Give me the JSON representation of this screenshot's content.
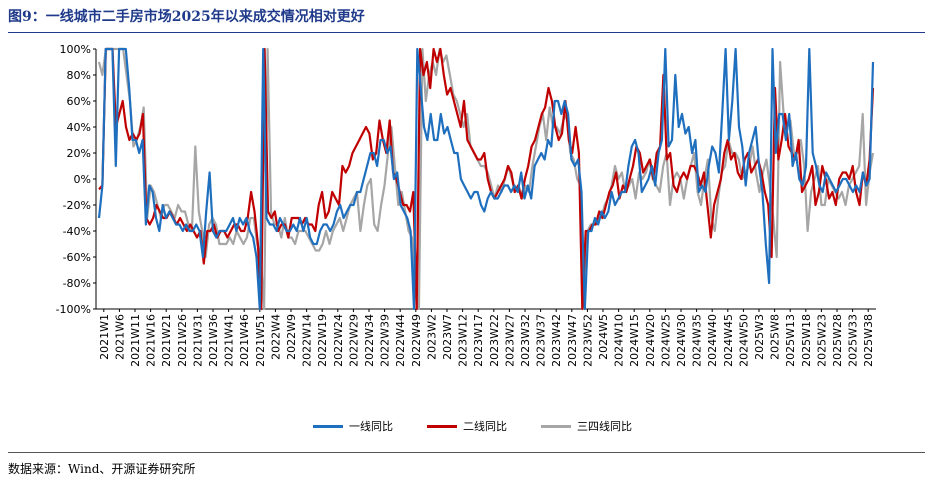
{
  "title": "图9：一线城市二手房市场2025年以来成交情况相对更好",
  "source": "数据来源：Wind、开源证券研究所",
  "colors": {
    "tier1": "#1f6fbf",
    "tier2": "#c00000",
    "tier34": "#a6a6a6"
  },
  "chart_data": {
    "type": "line",
    "ylim": [
      -100,
      100
    ],
    "y_ticks": [
      "100%",
      "80%",
      "60%",
      "40%",
      "20%",
      "0%",
      "-20%",
      "-40%",
      "-60%",
      "-80%",
      "-100%"
    ],
    "x_tick_labels": [
      "2021W1",
      "2021W6",
      "2021W11",
      "2021W16",
      "2021W21",
      "2021W26",
      "2021W31",
      "2021W36",
      "2021W41",
      "2021W46",
      "2021W51",
      "2022W4",
      "2022W9",
      "2022W14",
      "2022W19",
      "2022W24",
      "2022W29",
      "2022W34",
      "2022W39",
      "2022W44",
      "2022W49",
      "2023W2",
      "2023W7",
      "2023W12",
      "2023W17",
      "2023W22",
      "2023W27",
      "2023W32",
      "2023W37",
      "2023W42",
      "2023W47",
      "2023W52",
      "2024W5",
      "2024W10",
      "2024W15",
      "2024W20",
      "2024W25",
      "2024W30",
      "2024W35",
      "2024W40",
      "2024W45",
      "2024W50",
      "2025W3",
      "2025W8",
      "2025W13",
      "2025W18",
      "2025W23",
      "2025W28",
      "2025W33",
      "2025W38"
    ],
    "series": [
      {
        "name": "一线同比",
        "values": [
          -30,
          -5,
          100,
          100,
          100,
          10,
          100,
          100,
          100,
          70,
          30,
          30,
          20,
          30,
          -35,
          -5,
          -10,
          -30,
          -40,
          -20,
          -30,
          -25,
          -30,
          -35,
          -35,
          -40,
          -35,
          -40,
          -40,
          -35,
          -40,
          -60,
          -25,
          5,
          -40,
          -45,
          -40,
          -40,
          -40,
          -35,
          -30,
          -40,
          -30,
          -35,
          -30,
          -40,
          -45,
          -60,
          -100,
          100,
          -30,
          -35,
          -35,
          -40,
          -30,
          -35,
          -40,
          -40,
          -35,
          -40,
          -30,
          -40,
          -30,
          -45,
          -50,
          -50,
          -40,
          -35,
          -35,
          -40,
          -35,
          -25,
          -20,
          -30,
          -25,
          -20,
          -20,
          -10,
          -10,
          0,
          10,
          20,
          20,
          10,
          30,
          30,
          20,
          25,
          0,
          5,
          -20,
          -25,
          -30,
          -40,
          -100,
          100,
          70,
          40,
          30,
          50,
          30,
          30,
          50,
          35,
          40,
          30,
          20,
          20,
          0,
          -5,
          -10,
          -15,
          -10,
          -10,
          -20,
          -25,
          -15,
          -10,
          -15,
          -15,
          -10,
          -5,
          -5,
          -10,
          -5,
          -10,
          5,
          -15,
          -5,
          -15,
          10,
          15,
          20,
          15,
          30,
          25,
          60,
          60,
          50,
          60,
          50,
          15,
          10,
          15,
          -10,
          -100,
          -40,
          -40,
          -30,
          -35,
          -25,
          -30,
          -25,
          -10,
          -20,
          -15,
          -10,
          -10,
          10,
          25,
          30,
          20,
          -10,
          -5,
          0,
          10,
          -5,
          20,
          30,
          100,
          25,
          30,
          80,
          40,
          50,
          35,
          40,
          20,
          30,
          -10,
          -5,
          -10,
          10,
          25,
          20,
          5,
          50,
          100,
          30,
          60,
          100,
          40,
          25,
          -5,
          20,
          30,
          40,
          10,
          -10,
          -50,
          -80,
          100,
          20,
          50,
          50,
          30,
          50,
          10,
          20,
          0,
          -5,
          10,
          100,
          20,
          10,
          -5,
          -10,
          5,
          0,
          -5,
          -10,
          -5,
          0,
          0,
          -5,
          -10,
          -5,
          -10,
          5,
          -5,
          0,
          90
        ]
      },
      {
        "name": "二线同比",
        "values": [
          -8,
          -5,
          100,
          100,
          100,
          40,
          50,
          60,
          40,
          30,
          35,
          30,
          35,
          50,
          -30,
          -35,
          -30,
          -20,
          -25,
          -30,
          -30,
          -25,
          -30,
          -35,
          -30,
          -35,
          -40,
          -35,
          -40,
          -45,
          -40,
          -65,
          -40,
          -40,
          -35,
          -45,
          -40,
          -40,
          -45,
          -40,
          -35,
          -35,
          -40,
          -40,
          -30,
          -10,
          -25,
          -50,
          -100,
          100,
          -25,
          -30,
          -25,
          -40,
          -35,
          -35,
          -45,
          -30,
          -30,
          -30,
          -35,
          -30,
          -35,
          -35,
          -40,
          -20,
          -10,
          -30,
          -25,
          -10,
          -15,
          -20,
          10,
          5,
          10,
          20,
          25,
          30,
          35,
          40,
          35,
          15,
          20,
          45,
          30,
          20,
          45,
          5,
          0,
          -10,
          -20,
          -20,
          -25,
          -10,
          -100,
          100,
          80,
          90,
          70,
          100,
          90,
          100,
          80,
          65,
          70,
          60,
          50,
          40,
          60,
          30,
          25,
          20,
          15,
          15,
          20,
          0,
          -10,
          -15,
          -10,
          -5,
          0,
          10,
          5,
          -10,
          -5,
          -15,
          0,
          10,
          25,
          30,
          40,
          50,
          55,
          70,
          60,
          40,
          30,
          35,
          60,
          30,
          20,
          40,
          20,
          -100,
          -40,
          -40,
          -35,
          -35,
          -25,
          -30,
          -20,
          -10,
          -5,
          5,
          -15,
          -5,
          -10,
          0,
          10,
          25,
          20,
          5,
          10,
          15,
          0,
          20,
          25,
          80,
          15,
          20,
          -5,
          -10,
          0,
          5,
          0,
          10,
          10,
          5,
          -5,
          5,
          -20,
          -45,
          -20,
          -10,
          0,
          20,
          30,
          15,
          20,
          5,
          0,
          15,
          20,
          5,
          10,
          15,
          5,
          -10,
          -20,
          -60,
          70,
          15,
          30,
          50,
          25,
          20,
          15,
          30,
          -10,
          -5,
          0,
          10,
          -20,
          -10,
          10,
          0,
          -15,
          -10,
          -20,
          0,
          5,
          5,
          0,
          10,
          -10,
          -20,
          5,
          -5,
          15,
          70
        ]
      },
      {
        "name": "三四线同比",
        "values": [
          90,
          80,
          100,
          100,
          100,
          100,
          100,
          100,
          80,
          60,
          25,
          30,
          40,
          55,
          -30,
          -5,
          -10,
          -20,
          -30,
          -20,
          -20,
          -25,
          -30,
          -20,
          -25,
          -25,
          -35,
          -40,
          25,
          -25,
          -40,
          -60,
          -35,
          -30,
          -35,
          -50,
          -50,
          -50,
          -45,
          -50,
          -40,
          -45,
          -50,
          -45,
          -30,
          -30,
          -50,
          -60,
          -100,
          100,
          -25,
          -35,
          -35,
          -45,
          -30,
          -45,
          -45,
          -50,
          -40,
          -40,
          -40,
          -45,
          -50,
          -55,
          -55,
          -50,
          -40,
          -50,
          -40,
          -35,
          -30,
          -40,
          -30,
          -20,
          -15,
          -10,
          -40,
          -20,
          -5,
          0,
          -35,
          -40,
          -20,
          -5,
          20,
          40,
          10,
          -20,
          -10,
          -25,
          -40,
          -45,
          -90,
          -100,
          100,
          60,
          80,
          90,
          80,
          100,
          90,
          95,
          80,
          65,
          60,
          50,
          40,
          50,
          25,
          20,
          15,
          10,
          10,
          5,
          -5,
          -15,
          -5,
          -10,
          0,
          10,
          0,
          -10,
          -5,
          -15,
          -5,
          -10,
          10,
          25,
          40,
          50,
          30,
          55,
          40,
          40,
          35,
          45,
          50,
          20,
          15,
          0,
          -5,
          -100,
          -40,
          -35,
          -35,
          -30,
          -30,
          -20,
          -15,
          -5,
          10,
          0,
          5,
          -10,
          -5,
          0,
          -15,
          5,
          0,
          5,
          15,
          0,
          -5,
          -10,
          10,
          20,
          -20,
          0,
          5,
          0,
          -15,
          0,
          10,
          20,
          -10,
          -20,
          0,
          15,
          -30,
          -40,
          -15,
          5,
          10,
          30,
          20,
          20,
          15,
          0,
          5,
          10,
          25,
          5,
          -10,
          5,
          15,
          -5,
          -30,
          -60,
          90,
          50,
          40,
          45,
          20,
          20,
          30,
          10,
          -40,
          -10,
          0,
          10,
          -20,
          -20,
          0,
          -5,
          -10,
          -15,
          -10,
          -20,
          -5,
          0,
          5,
          10,
          50,
          -20,
          5,
          20
        ]
      }
    ]
  }
}
